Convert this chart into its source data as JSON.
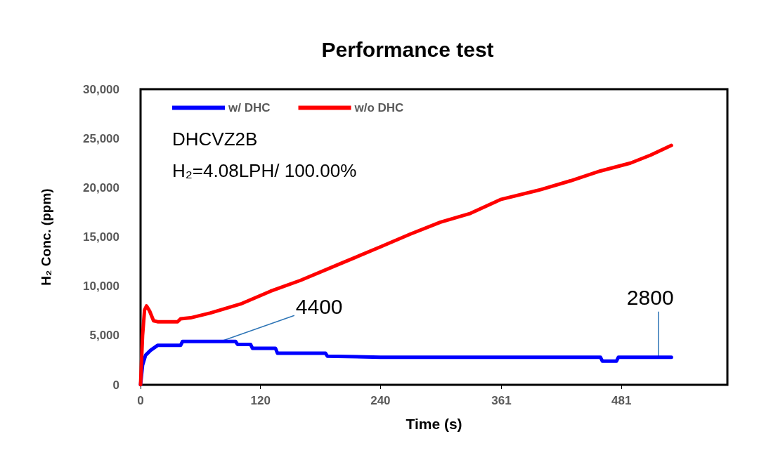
{
  "chart_data": {
    "type": "line",
    "title": "Performance test",
    "xlabel": "Time (s)",
    "ylabel": "H₂ Conc. (ppm)",
    "xlim": [
      0,
      587
    ],
    "xticks": [
      0,
      120,
      240,
      361,
      481
    ],
    "ylim": [
      0,
      30000
    ],
    "yticks": [
      0,
      {
        "value": 5000,
        "label": "5,000"
      },
      {
        "value": 10000,
        "label": "10,000"
      },
      {
        "value": 15000,
        "label": "15,000"
      },
      {
        "value": 20000,
        "label": "20,000"
      },
      {
        "value": 25000,
        "label": "25,000"
      },
      {
        "value": 30000,
        "label": "30,000"
      }
    ],
    "grid": false,
    "legend": "top left",
    "marker": "none",
    "line_style": "solid",
    "annotations": [
      "DHCVZ2B",
      "H₂=4.08LPH/ 100.00%",
      {
        "text": "4400",
        "x": 80,
        "y": 4400
      },
      {
        "text": "2800",
        "x": 518,
        "y": 2800
      }
    ],
    "series": [
      {
        "name": "w/ DHC",
        "color": "#0000ff",
        "x": [
          0,
          2,
          5,
          10,
          17,
          40,
          42,
          95,
          97,
          110,
          112,
          135,
          137,
          185,
          187,
          240,
          460,
          462,
          476,
          478,
          531
        ],
        "values": [
          0,
          2000,
          3000,
          3500,
          4000,
          4000,
          4400,
          4400,
          4100,
          4100,
          3700,
          3700,
          3200,
          3200,
          2900,
          2800,
          2800,
          2400,
          2400,
          2800,
          2800
        ]
      },
      {
        "name": "w/o DHC",
        "color": "#ff0000",
        "x": [
          0,
          2,
          4,
          6,
          9,
          13,
          17,
          37,
          40,
          50,
          70,
          100,
          130,
          160,
          200,
          240,
          270,
          300,
          330,
          360,
          400,
          430,
          460,
          490,
          510,
          531
        ],
        "values": [
          0,
          5000,
          7600,
          8000,
          7500,
          6500,
          6400,
          6400,
          6700,
          6800,
          7300,
          8200,
          9500,
          10600,
          12300,
          14000,
          15300,
          16500,
          17400,
          18800,
          19800,
          20700,
          21700,
          22500,
          23300,
          24300
        ]
      }
    ]
  }
}
